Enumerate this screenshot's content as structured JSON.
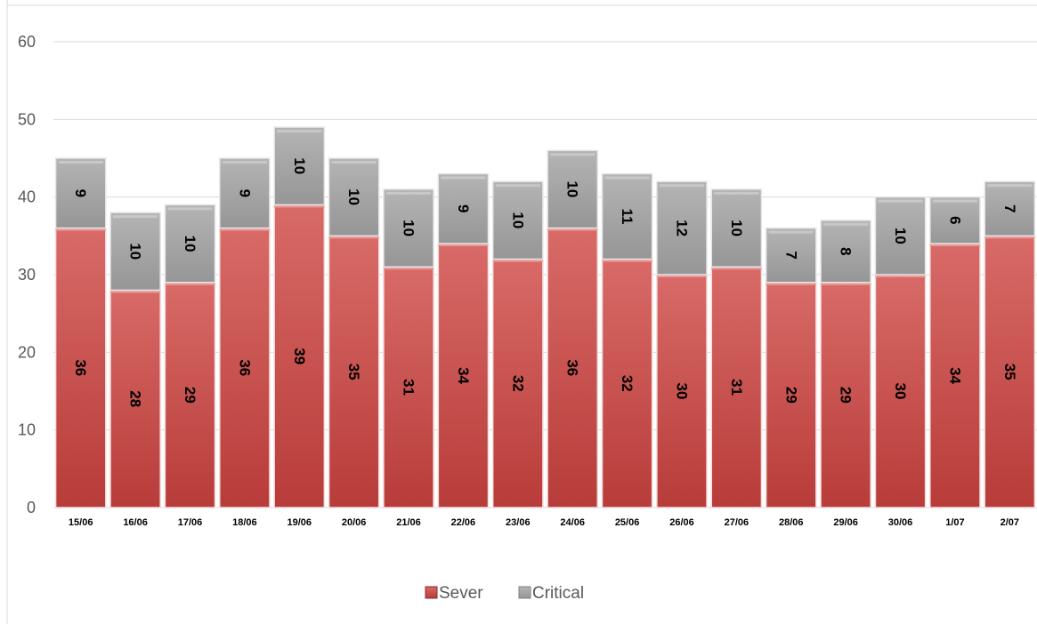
{
  "chart_data": {
    "type": "bar",
    "stacked": true,
    "categories": [
      "15/06",
      "16/06",
      "17/06",
      "18/06",
      "19/06",
      "20/06",
      "21/06",
      "22/06",
      "23/06",
      "24/06",
      "25/06",
      "26/06",
      "27/06",
      "28/06",
      "29/06",
      "30/06",
      "1/07",
      "2/07"
    ],
    "series": [
      {
        "name": "Sever",
        "color": "#c0504d",
        "values": [
          36,
          28,
          29,
          36,
          39,
          35,
          31,
          34,
          32,
          36,
          32,
          30,
          31,
          29,
          29,
          30,
          34,
          35
        ]
      },
      {
        "name": "Critical",
        "color": "#a5a5a5",
        "values": [
          9,
          10,
          10,
          9,
          10,
          10,
          10,
          9,
          10,
          10,
          11,
          12,
          10,
          7,
          8,
          10,
          6,
          7
        ]
      }
    ],
    "ylim": [
      0,
      60
    ],
    "yticks": [
      0,
      10,
      20,
      30,
      40,
      50,
      60
    ],
    "grid": true,
    "legend": "bottom",
    "data_labels": true
  }
}
